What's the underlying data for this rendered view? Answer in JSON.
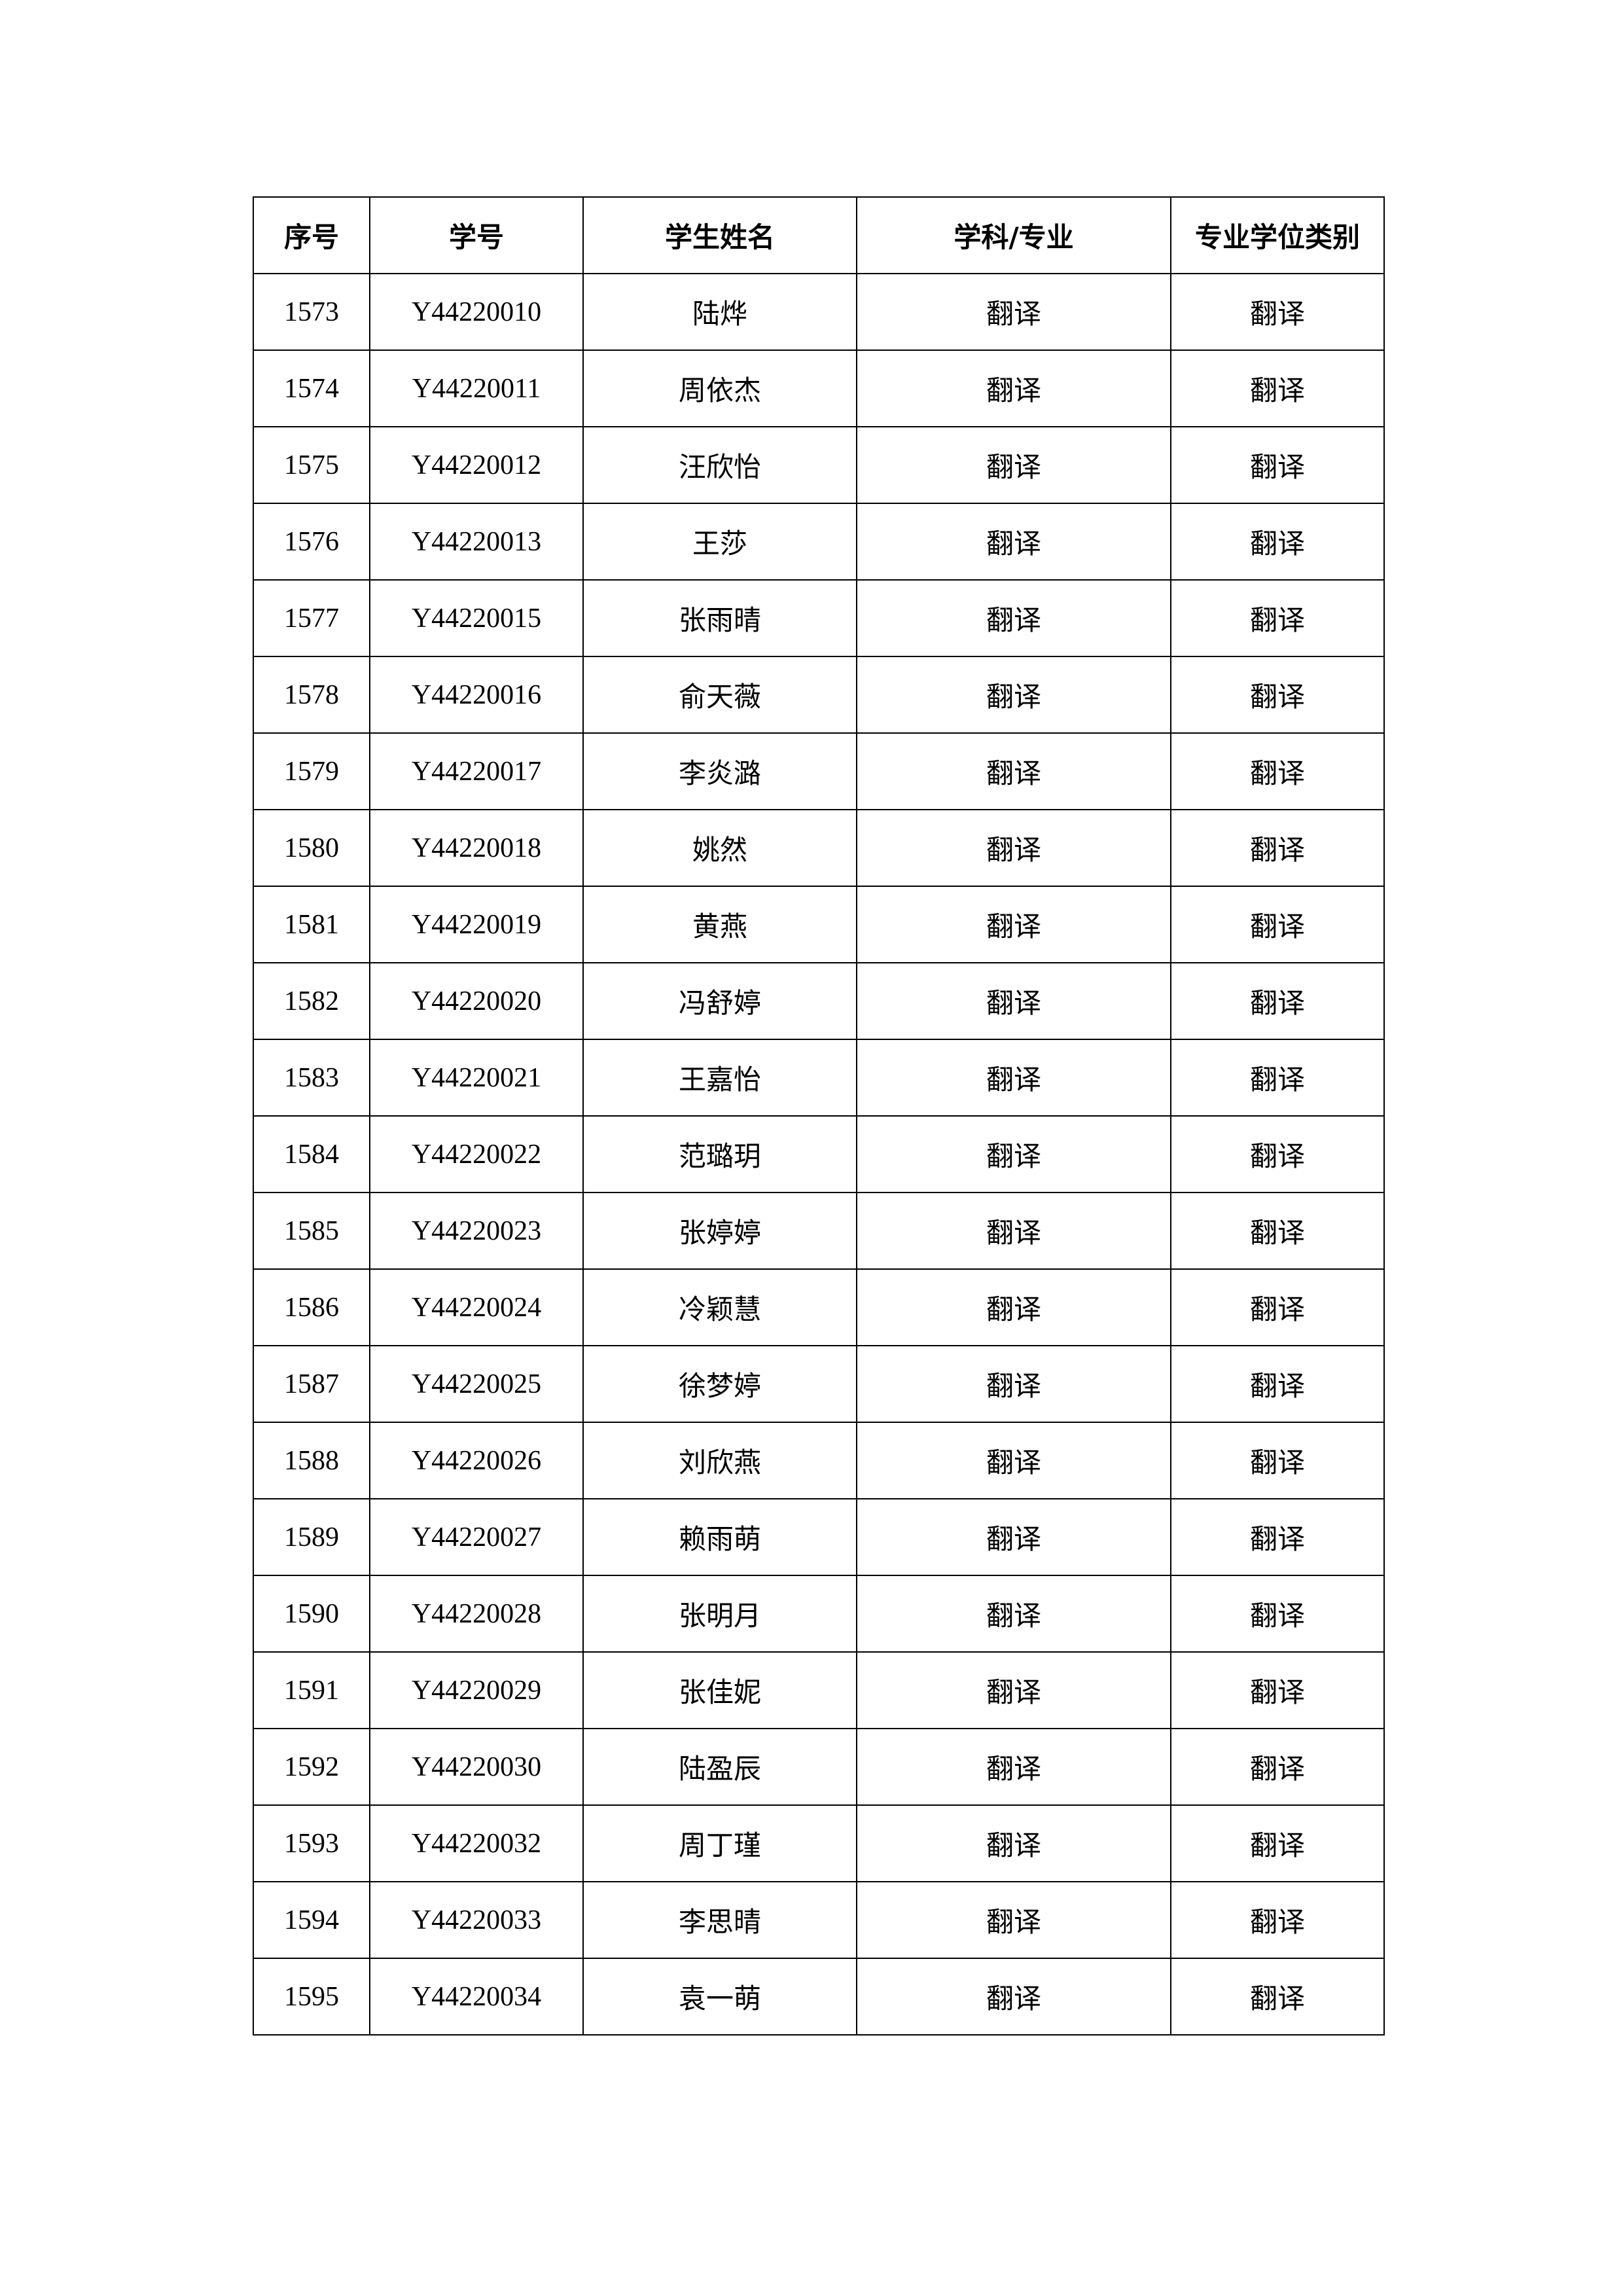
{
  "table": {
    "headers": [
      "序号",
      "学号",
      "学生姓名",
      "学科/专业",
      "专业学位类别"
    ],
    "rows": [
      [
        "1573",
        "Y44220010",
        "陆烨",
        "翻译",
        "翻译"
      ],
      [
        "1574",
        "Y44220011",
        "周依杰",
        "翻译",
        "翻译"
      ],
      [
        "1575",
        "Y44220012",
        "汪欣怡",
        "翻译",
        "翻译"
      ],
      [
        "1576",
        "Y44220013",
        "王莎",
        "翻译",
        "翻译"
      ],
      [
        "1577",
        "Y44220015",
        "张雨晴",
        "翻译",
        "翻译"
      ],
      [
        "1578",
        "Y44220016",
        "俞天薇",
        "翻译",
        "翻译"
      ],
      [
        "1579",
        "Y44220017",
        "李炎潞",
        "翻译",
        "翻译"
      ],
      [
        "1580",
        "Y44220018",
        "姚然",
        "翻译",
        "翻译"
      ],
      [
        "1581",
        "Y44220019",
        "黄燕",
        "翻译",
        "翻译"
      ],
      [
        "1582",
        "Y44220020",
        "冯舒婷",
        "翻译",
        "翻译"
      ],
      [
        "1583",
        "Y44220021",
        "王嘉怡",
        "翻译",
        "翻译"
      ],
      [
        "1584",
        "Y44220022",
        "范璐玥",
        "翻译",
        "翻译"
      ],
      [
        "1585",
        "Y44220023",
        "张婷婷",
        "翻译",
        "翻译"
      ],
      [
        "1586",
        "Y44220024",
        "冷颖慧",
        "翻译",
        "翻译"
      ],
      [
        "1587",
        "Y44220025",
        "徐梦婷",
        "翻译",
        "翻译"
      ],
      [
        "1588",
        "Y44220026",
        "刘欣燕",
        "翻译",
        "翻译"
      ],
      [
        "1589",
        "Y44220027",
        "赖雨萌",
        "翻译",
        "翻译"
      ],
      [
        "1590",
        "Y44220028",
        "张明月",
        "翻译",
        "翻译"
      ],
      [
        "1591",
        "Y44220029",
        "张佳妮",
        "翻译",
        "翻译"
      ],
      [
        "1592",
        "Y44220030",
        "陆盈辰",
        "翻译",
        "翻译"
      ],
      [
        "1593",
        "Y44220032",
        "周丁瑾",
        "翻译",
        "翻译"
      ],
      [
        "1594",
        "Y44220033",
        "李思晴",
        "翻译",
        "翻译"
      ],
      [
        "1595",
        "Y44220034",
        "袁一萌",
        "翻译",
        "翻译"
      ]
    ]
  }
}
